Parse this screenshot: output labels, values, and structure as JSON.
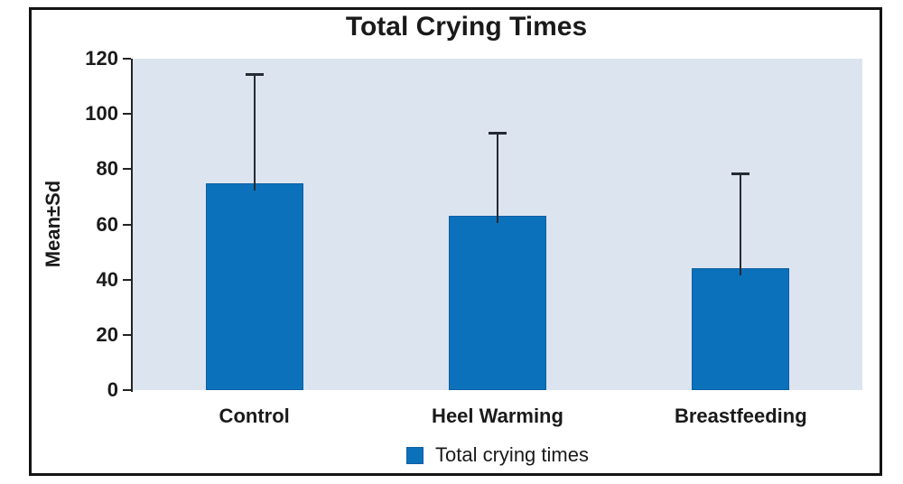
{
  "figure": {
    "background_color": "#FFFFFF",
    "frame_border_color": "#141414"
  },
  "chart_data": {
    "type": "bar",
    "title": "Total Crying Times",
    "xlabel": "",
    "ylabel": "Mean±Sd",
    "categories": [
      "Control",
      "Heel Warming",
      "Breastfeeding"
    ],
    "series": [
      {
        "name": "Total crying times",
        "values": [
          75,
          63,
          44
        ],
        "error_plus": [
          39,
          30,
          34
        ],
        "error_bar_tops": [
          114,
          93,
          78
        ]
      }
    ],
    "ylim": [
      0,
      120
    ],
    "yticks": [
      0,
      20,
      40,
      60,
      80,
      100,
      120
    ],
    "grid": false,
    "legend_position": "bottom",
    "colors": {
      "bar": "#0B71BB",
      "bar_border": "#0F5FA2",
      "plot_background": "#DCE4EF",
      "error_bar": "#252B33",
      "text": "#1A1A1A"
    }
  }
}
